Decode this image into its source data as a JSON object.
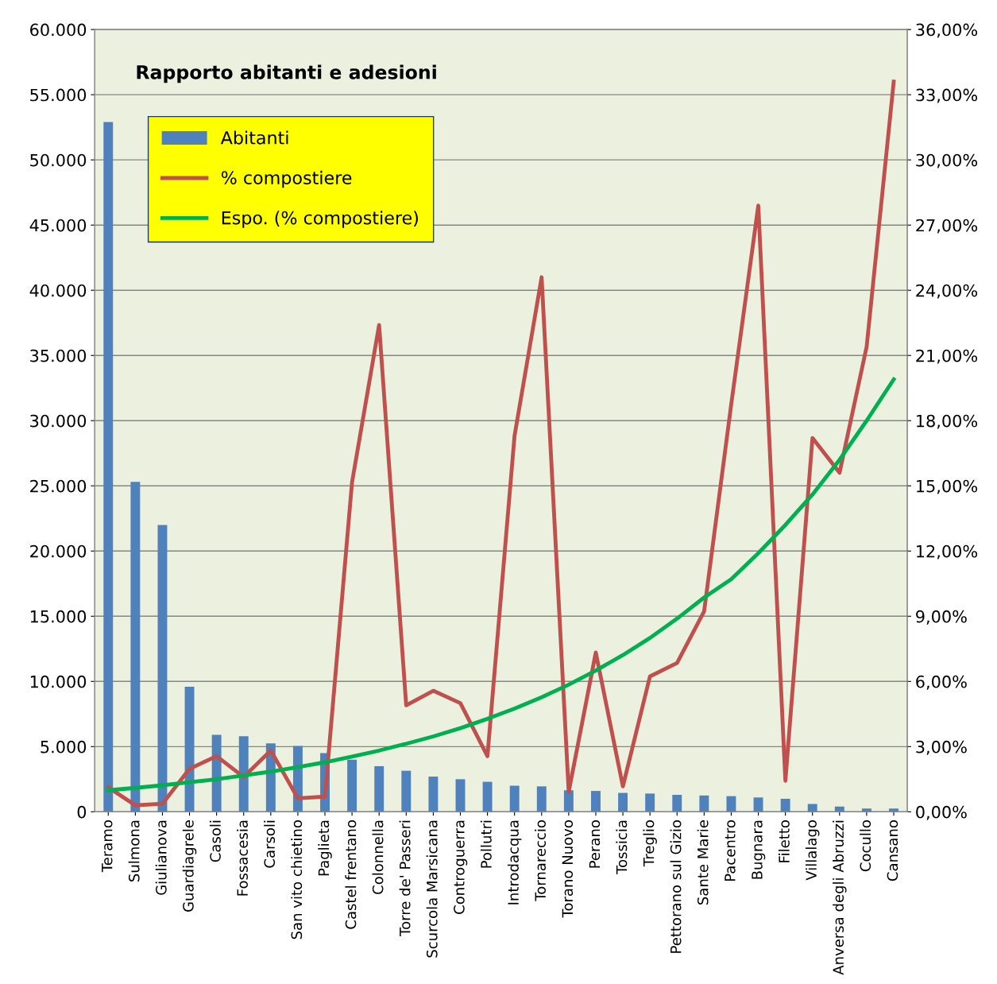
{
  "chart_data": {
    "type": "bar",
    "title": "Rapporto abitanti e adesioni",
    "categories": [
      "Teramo",
      "Sulmona",
      "Giulianova",
      "Guardiagrele",
      "Casoli",
      "Fossacesia",
      "Carsoli",
      "San vito chietino",
      "Paglieta",
      "Castel frentano",
      "Colonnella",
      "Torre de' Passeri",
      "Scurcola Marsicana",
      "Controguerra",
      "Pollutri",
      "Introdacqua",
      "Tornareccio",
      "Torano Nuovo",
      "Perano",
      "Tossicia",
      "Treglio",
      "Pettorano sul Gizio",
      "Sante Marie",
      "Pacentro",
      "Bugnara",
      "Filetto",
      "Villalago",
      "Anversa degli Abruzzi",
      "Cocullo",
      "Cansano"
    ],
    "series": [
      {
        "name": "Abitanti",
        "color": "#4f81bd",
        "values": [
          52900,
          25300,
          22000,
          9600,
          5900,
          5800,
          5250,
          5050,
          4500,
          4000,
          3500,
          3150,
          2700,
          2500,
          2300,
          2000,
          1950,
          1650,
          1600,
          1450,
          1400,
          1300,
          1250,
          1200,
          1100,
          1000,
          600,
          400,
          250,
          250
        ]
      },
      {
        "name": "% compostiere",
        "type": "line",
        "axis": "y2",
        "color": "#c0504d",
        "values": [
          1.13,
          0.3,
          0.37,
          1.98,
          2.56,
          1.6,
          2.82,
          0.62,
          0.7,
          15.16,
          22.4,
          4.9,
          5.57,
          5.0,
          2.56,
          17.3,
          24.6,
          0.92,
          7.33,
          1.17,
          6.23,
          6.85,
          9.23,
          18.75,
          27.9,
          1.43,
          17.2,
          15.6,
          21.4,
          33.6
        ]
      },
      {
        "name": "Espo. (% compostiere)",
        "type": "line",
        "axis": "y2",
        "color": "#00b050",
        "values": [
          0.99,
          1.1,
          1.22,
          1.36,
          1.5,
          1.67,
          1.85,
          2.06,
          2.28,
          2.54,
          2.82,
          3.13,
          3.47,
          3.85,
          4.28,
          4.75,
          5.27,
          5.85,
          6.5,
          7.21,
          8.0,
          8.89,
          9.86,
          10.7,
          11.9,
          13.2,
          14.6,
          16.2,
          18.0,
          19.9
        ]
      }
    ],
    "ylim": [
      0,
      60000
    ],
    "yticks": [
      {
        "value": 0,
        "label": "0"
      },
      {
        "value": 5000,
        "label": "5.000"
      },
      {
        "value": 10000,
        "label": "10.000"
      },
      {
        "value": 15000,
        "label": "15.000"
      },
      {
        "value": 20000,
        "label": "20.000"
      },
      {
        "value": 25000,
        "label": "25.000"
      },
      {
        "value": 30000,
        "label": "30.000"
      },
      {
        "value": 35000,
        "label": "35.000"
      },
      {
        "value": 40000,
        "label": "40.000"
      },
      {
        "value": 45000,
        "label": "45.000"
      },
      {
        "value": 50000,
        "label": "50.000"
      },
      {
        "value": 55000,
        "label": "55.000"
      },
      {
        "value": 60000,
        "label": "60.000"
      }
    ],
    "y2lim": [
      0,
      36
    ],
    "y2ticks": [
      {
        "value": 0,
        "label": "0,00%"
      },
      {
        "value": 3,
        "label": "3,00%"
      },
      {
        "value": 6,
        "label": "6,00%"
      },
      {
        "value": 9,
        "label": "9,00%"
      },
      {
        "value": 12,
        "label": "12,00%"
      },
      {
        "value": 15,
        "label": "15,00%"
      },
      {
        "value": 18,
        "label": "18,00%"
      },
      {
        "value": 21,
        "label": "21,00%"
      },
      {
        "value": 24,
        "label": "24,00%"
      },
      {
        "value": 27,
        "label": "27,00%"
      },
      {
        "value": 30,
        "label": "30,00%"
      },
      {
        "value": 33,
        "label": "33,00%"
      },
      {
        "value": 36,
        "label": "36,00%"
      }
    ],
    "grid": "y",
    "legend": "top left",
    "marker": "none",
    "line_style": "solid"
  }
}
